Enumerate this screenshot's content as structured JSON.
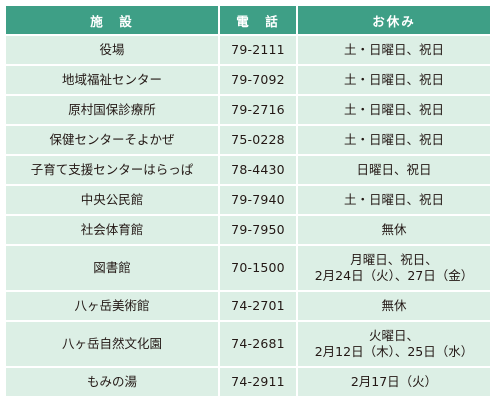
{
  "table": {
    "headers": {
      "facility": "施　設",
      "phone": "電　話",
      "holiday": "お休み"
    },
    "rows": [
      {
        "facility": "役場",
        "phone": "79-2111",
        "holiday": [
          "土・日曜日、祝日"
        ]
      },
      {
        "facility": "地域福祉センター",
        "phone": "79-7092",
        "holiday": [
          "土・日曜日、祝日"
        ]
      },
      {
        "facility": "原村国保診療所",
        "phone": "79-2716",
        "holiday": [
          "土・日曜日、祝日"
        ]
      },
      {
        "facility": "保健センターそよかぜ",
        "phone": "75-0228",
        "holiday": [
          "土・日曜日、祝日"
        ]
      },
      {
        "facility": "子育て支援センターはらっぱ",
        "phone": "78-4430",
        "holiday": [
          "日曜日、祝日"
        ]
      },
      {
        "facility": "中央公民館",
        "phone": "79-7940",
        "holiday": [
          "土・日曜日、祝日"
        ]
      },
      {
        "facility": "社会体育館",
        "phone": "79-7950",
        "holiday": [
          "無休"
        ]
      },
      {
        "facility": "図書館",
        "phone": "70-1500",
        "holiday": [
          "月曜日、祝日、",
          "2月24日（火）、27日（金）"
        ]
      },
      {
        "facility": "八ヶ岳美術館",
        "phone": "74-2701",
        "holiday": [
          "無休"
        ]
      },
      {
        "facility": "八ヶ岳自然文化園",
        "phone": "74-2681",
        "holiday": [
          "火曜日、",
          "2月12日（木）、25日（水）"
        ]
      },
      {
        "facility": "もみの湯",
        "phone": "74-2911",
        "holiday": [
          "2月17日（火）"
        ]
      }
    ]
  },
  "colors": {
    "header_bg": "#3e9f86",
    "cell_bg": "#dcefe5",
    "text": "#231815"
  }
}
